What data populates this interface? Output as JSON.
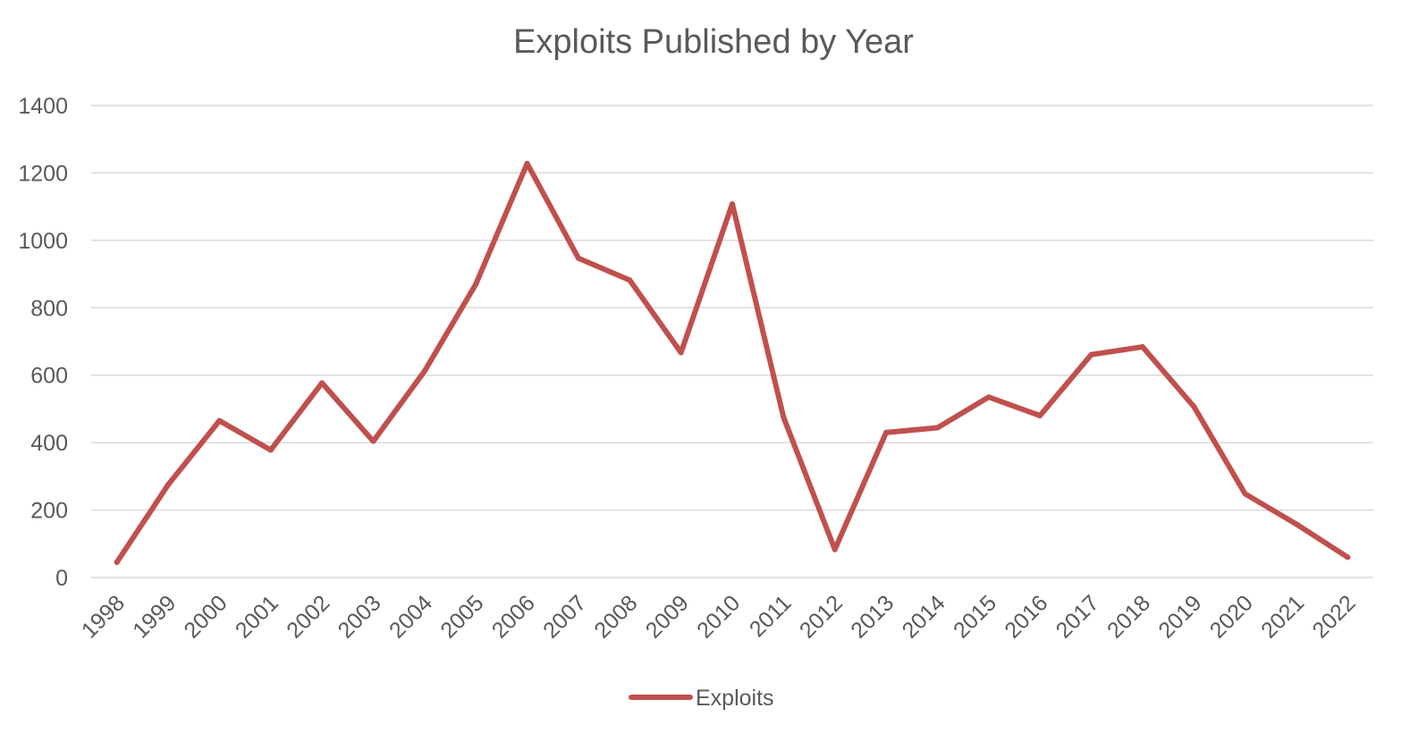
{
  "chart_data": {
    "type": "line",
    "title": "Exploits Published by Year",
    "xlabel": "",
    "ylabel": "",
    "categories": [
      "1998",
      "1999",
      "2000",
      "2001",
      "2002",
      "2003",
      "2004",
      "2005",
      "2006",
      "2007",
      "2008",
      "2009",
      "2010",
      "2011",
      "2012",
      "2013",
      "2014",
      "2015",
      "2016",
      "2017",
      "2018",
      "2019",
      "2020",
      "2021",
      "2022"
    ],
    "series": [
      {
        "name": "Exploits",
        "color": "#c0504d",
        "values": [
          45,
          275,
          465,
          378,
          577,
          404,
          612,
          870,
          1228,
          947,
          882,
          667,
          1108,
          475,
          83,
          430,
          444,
          535,
          480,
          661,
          684,
          507,
          248,
          158,
          60
        ]
      }
    ],
    "ylim": [
      0,
      1400
    ],
    "yticks": [
      0,
      200,
      400,
      600,
      800,
      1000,
      1200,
      1400
    ],
    "grid": true,
    "legend_position": "bottom"
  }
}
